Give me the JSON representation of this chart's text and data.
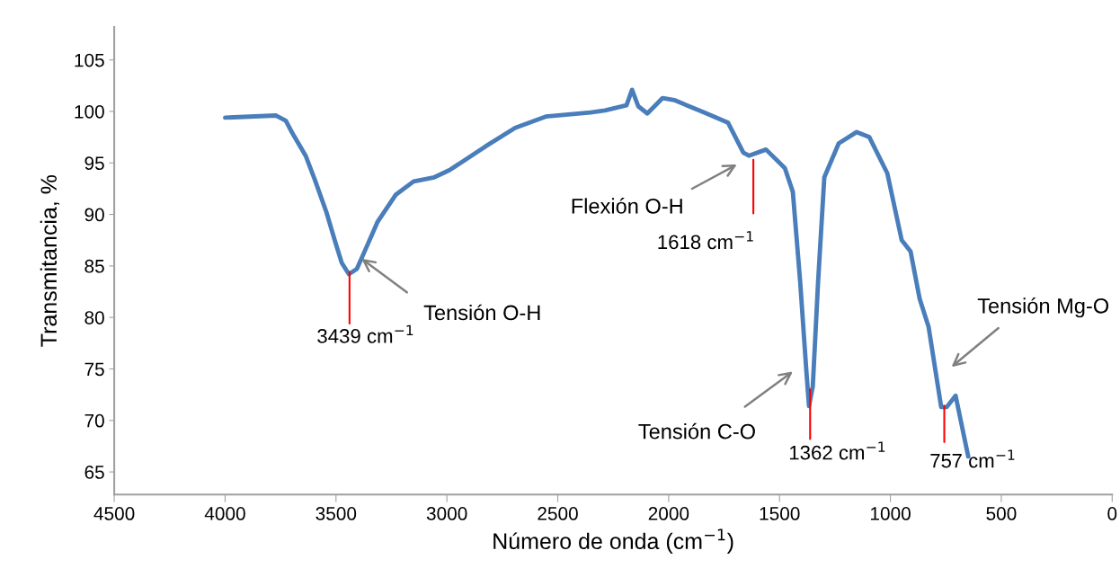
{
  "chart_data": {
    "type": "line",
    "xlabel": "Número de onda (cm$^{−1}$)",
    "ylabel": "Transmitancia, %",
    "xlim": [
      4500,
      0
    ],
    "xticks": [
      4500,
      4000,
      3500,
      3000,
      2500,
      2000,
      1500,
      1000,
      500,
      0
    ],
    "ylim": [
      62.8,
      108.2
    ],
    "yticks": [
      65,
      70,
      75,
      80,
      85,
      90,
      95,
      100,
      105
    ],
    "grid": false,
    "marker": "none",
    "line_style": "solid",
    "series": [
      {
        "color": "#4a7ebb",
        "x": [
          4000,
          3770,
          3726,
          3697,
          3637,
          3596,
          3543,
          3503,
          3474,
          3442,
          3406,
          3365,
          3312,
          3231,
          3150,
          3057,
          2988,
          2826,
          2692,
          2554,
          2352,
          2287,
          2190,
          2165,
          2137,
          2096,
          2027,
          1975,
          1841,
          1732,
          1663,
          1638,
          1561,
          1476,
          1440,
          1407,
          1379,
          1367,
          1350,
          1326,
          1298,
          1233,
          1152,
          1095,
          1014,
          949,
          909,
          868,
          828,
          771,
          746,
          706,
          649
        ],
        "values": [
          99.4,
          99.6,
          99.1,
          97.9,
          95.7,
          93.4,
          90.2,
          87.3,
          85.3,
          84.2,
          84.7,
          86.7,
          89.3,
          91.9,
          93.2,
          93.6,
          94.3,
          96.6,
          98.4,
          99.5,
          99.9,
          100.1,
          100.6,
          102.1,
          100.5,
          99.8,
          101.3,
          101.1,
          99.9,
          98.9,
          96.0,
          95.7,
          96.3,
          94.5,
          92.2,
          83.5,
          74.8,
          71.4,
          73.3,
          83.5,
          93.6,
          96.9,
          98.0,
          97.5,
          94.0,
          87.5,
          86.4,
          81.8,
          79.1,
          71.3,
          71.3,
          72.4,
          66.5
        ]
      },
      {
        "color": "#ff0000",
        "x": [
          3439,
          3439
        ],
        "values": [
          84.4,
          79.4
        ]
      },
      {
        "color": "#ff0000",
        "x": [
          1618,
          1618
        ],
        "values": [
          95.3,
          90.1
        ]
      },
      {
        "color": "#ff0000",
        "x": [
          1362,
          1362
        ],
        "values": [
          73.0,
          68.2
        ]
      },
      {
        "color": "#ff0000",
        "x": [
          757,
          757
        ],
        "values": [
          71.4,
          67.9
        ]
      }
    ],
    "annotations": [
      {
        "text": "3439 cm$^{−1}$",
        "x": 3439,
        "y": 79.4
      },
      {
        "text": "1618 cm$^{−1}$",
        "x": 1618,
        "y": 90.1
      },
      {
        "text": "1362 cm$^{−1}$",
        "x": 1362,
        "y": 68.2
      },
      {
        "text": "757 cm$^{−1}$",
        "x": 757,
        "y": 67.9
      },
      {
        "text": "Tensión O-H",
        "x": 3385,
        "y": 85.7
      },
      "Flexión O-H",
      "Tensión C-O",
      "Tensión Mg-O"
    ]
  }
}
